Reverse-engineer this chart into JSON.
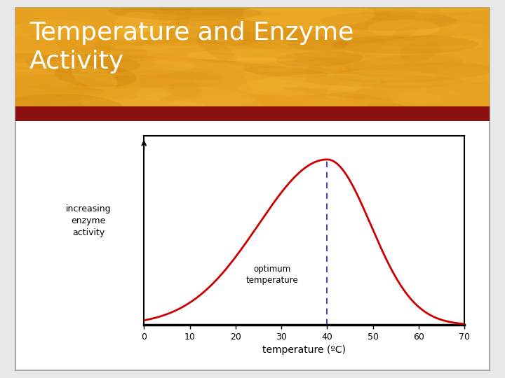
{
  "title_line1": "Temperature and Enzyme",
  "title_line2": "Activity",
  "title_color": "#ffffff",
  "dark_red_bar_color": "#8b1010",
  "curve_color": "#cc0000",
  "dashed_line_color": "#2222aa",
  "xlabel": "temperature (ºC)",
  "ylabel_lines": [
    "increasing",
    "enzyme",
    "activity"
  ],
  "optimum_label_line1": "optimum",
  "optimum_label_line2": "temperature",
  "x_ticks": [
    0,
    10,
    20,
    30,
    40,
    50,
    60,
    70
  ],
  "optimum_temp": 40,
  "outer_border_color": "#aaaaaa",
  "bg_color": "#ffffff",
  "header_gold_base": "#e8a020",
  "header_gold_light": "#f5c040",
  "header_gold_dark": "#c07808"
}
